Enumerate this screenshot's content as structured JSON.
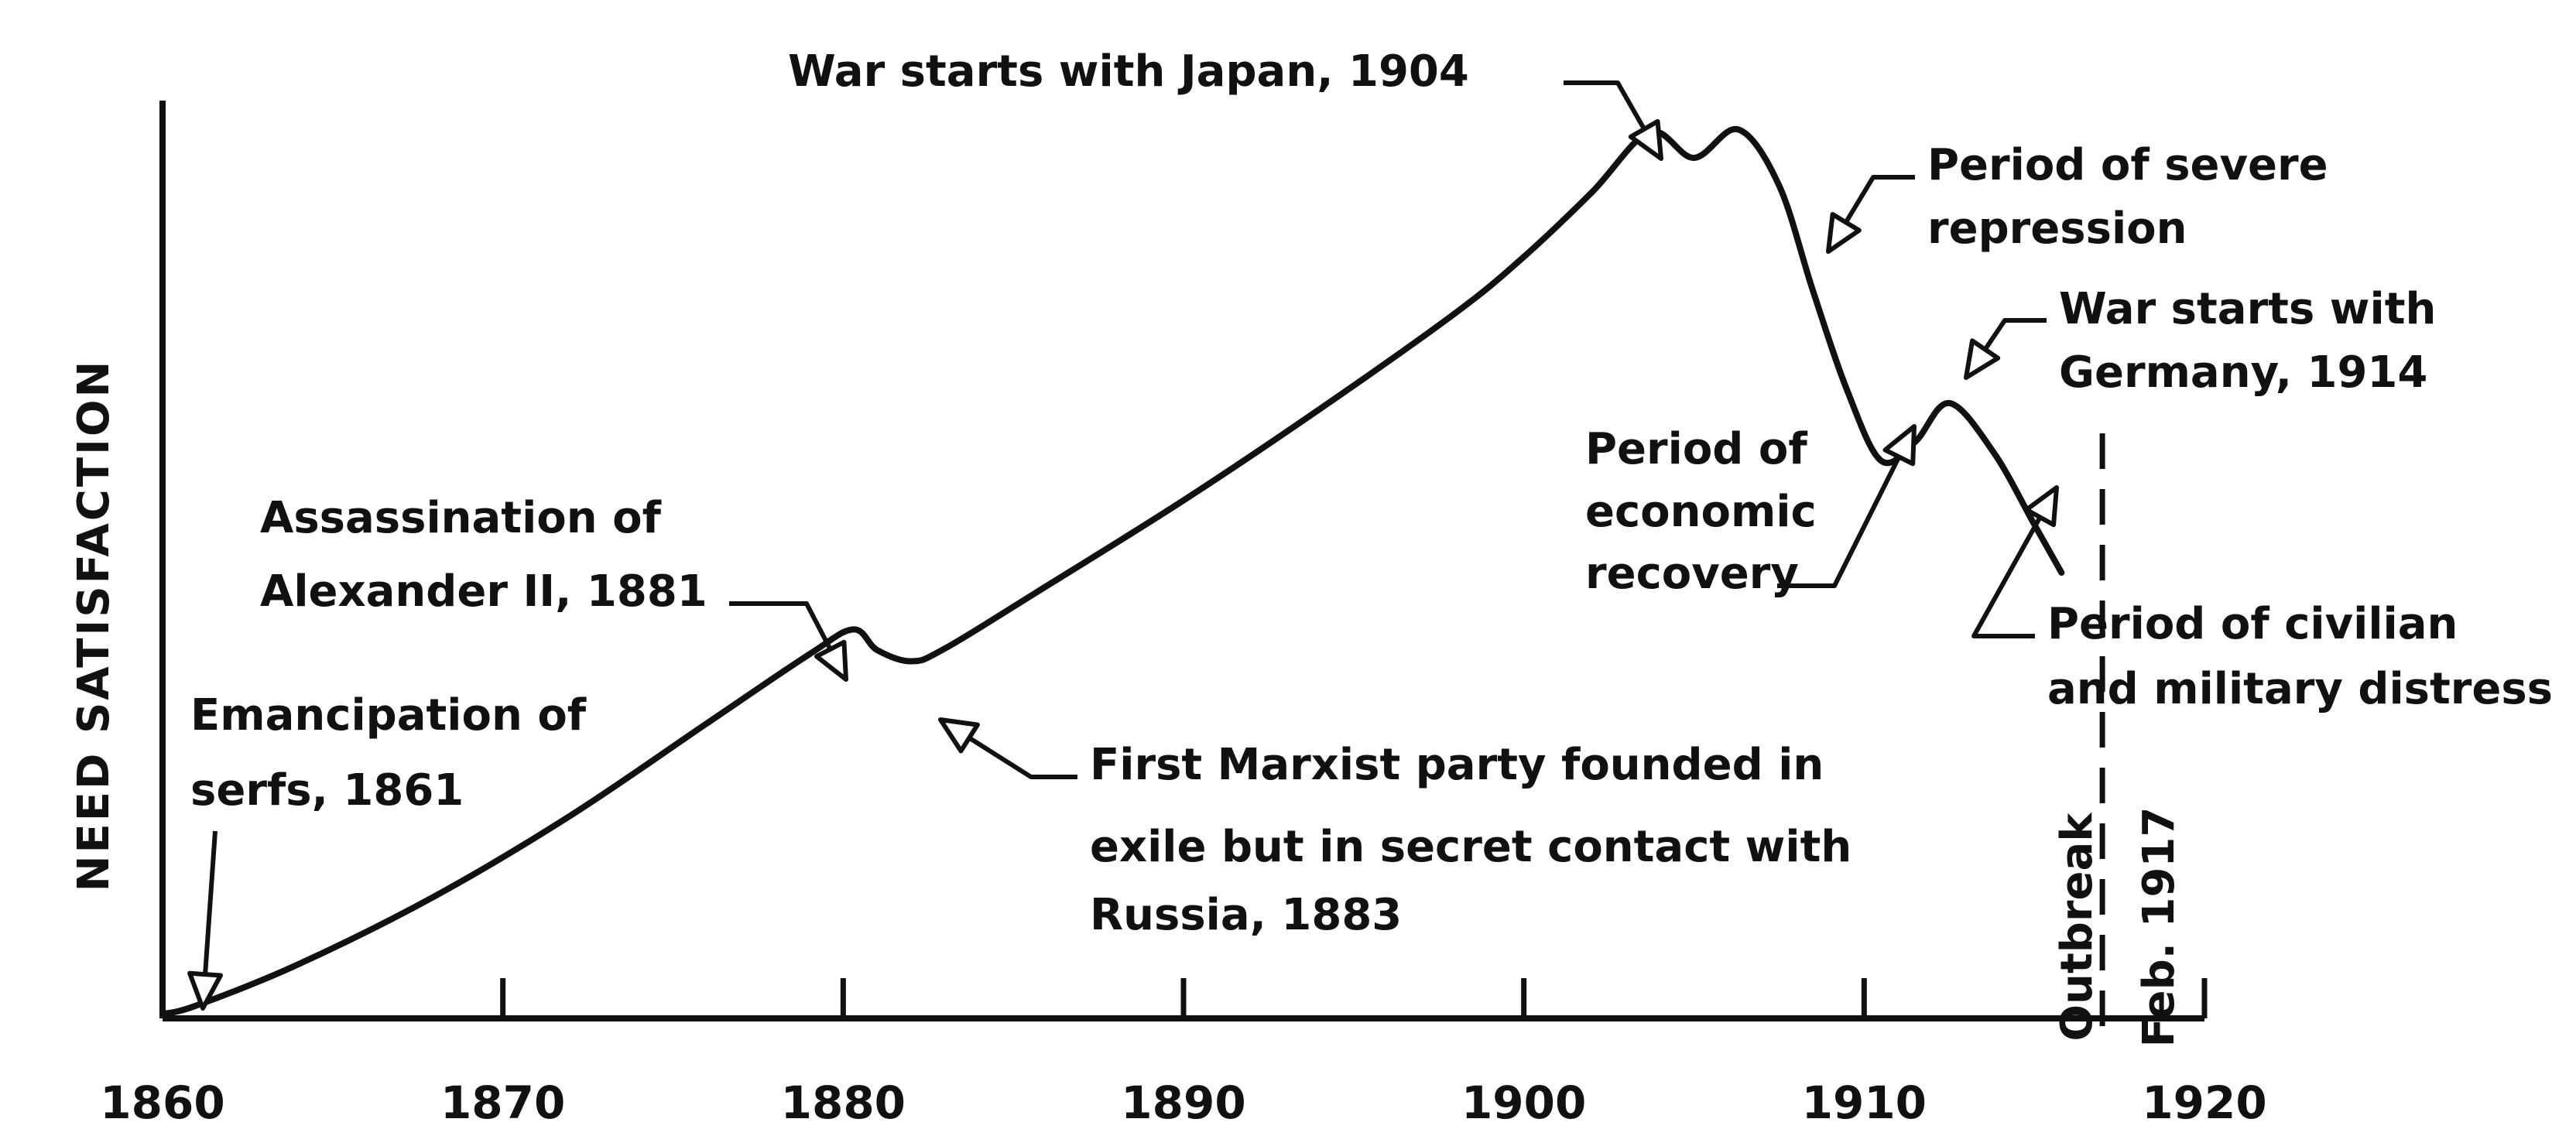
{
  "chart_data": {
    "type": "line",
    "title": "",
    "xlabel": "",
    "ylabel": "NEED SATISFACTION",
    "xlim": [
      1860,
      1920
    ],
    "ylim": [
      0,
      100
    ],
    "grid": false,
    "x_ticks": [
      {
        "value": 1860,
        "label": "1860"
      },
      {
        "value": 1870,
        "label": "1870"
      },
      {
        "value": 1880,
        "label": "1880"
      },
      {
        "value": 1890,
        "label": "1890"
      },
      {
        "value": 1900,
        "label": "1900"
      },
      {
        "value": 1910,
        "label": "1910"
      },
      {
        "value": 1920,
        "label": "1920"
      }
    ],
    "series": [
      {
        "x": [
          1860,
          1861,
          1864,
          1868,
          1872,
          1876,
          1879,
          1880.3,
          1881,
          1882,
          1883,
          1886,
          1890,
          1894,
          1898,
          1900,
          1902,
          1903.7,
          1905,
          1906.3,
          1907.5,
          1908.5,
          1909.5,
          1910.5,
          1911.5,
          1912.5,
          1913.8,
          1915,
          1915.8
        ],
        "values": [
          0.5,
          1.5,
          6.3,
          14.2,
          23.6,
          34.3,
          42.3,
          45.2,
          42.8,
          41.5,
          43.0,
          50.3,
          60.2,
          70.8,
          82.0,
          88.5,
          96.0,
          103.0,
          100.0,
          103.3,
          96.8,
          84.5,
          73.0,
          64.8,
          67.0,
          71.5,
          65.8,
          57.4,
          51.8
        ]
      }
    ],
    "event_line": {
      "x": 1917,
      "labels": [
        "Outbreak",
        "Feb. 1917"
      ]
    },
    "annotations": [
      {
        "lines": [
          "Emancipation of",
          "serfs, 1861"
        ],
        "x": 1861,
        "y": 1.5
      },
      {
        "lines": [
          "Assassination of",
          "Alexander II, 1881"
        ],
        "x": 1880.1,
        "y": 44.5
      },
      {
        "lines": [
          "First Marxist party founded in",
          "exile but in secret contact with",
          "Russia, 1883"
        ],
        "x": 1882.6,
        "y": 42.0
      },
      {
        "lines": [
          "War starts with Japan, 1904"
        ],
        "x": 1903.6,
        "y": 102.0
      },
      {
        "lines": [
          "Period of severe",
          "repression"
        ],
        "x": 1908.7,
        "y": 82.5
      },
      {
        "lines": [
          "Period of",
          "economic",
          "recovery"
        ],
        "x": 1911.1,
        "y": 66.5
      },
      {
        "lines": [
          "War starts with",
          "Germany, 1914"
        ],
        "x": 1912.4,
        "y": 70.5
      },
      {
        "lines": [
          "Period of civilian",
          "and military distress"
        ],
        "x": 1915.2,
        "y": 56.5
      }
    ]
  }
}
